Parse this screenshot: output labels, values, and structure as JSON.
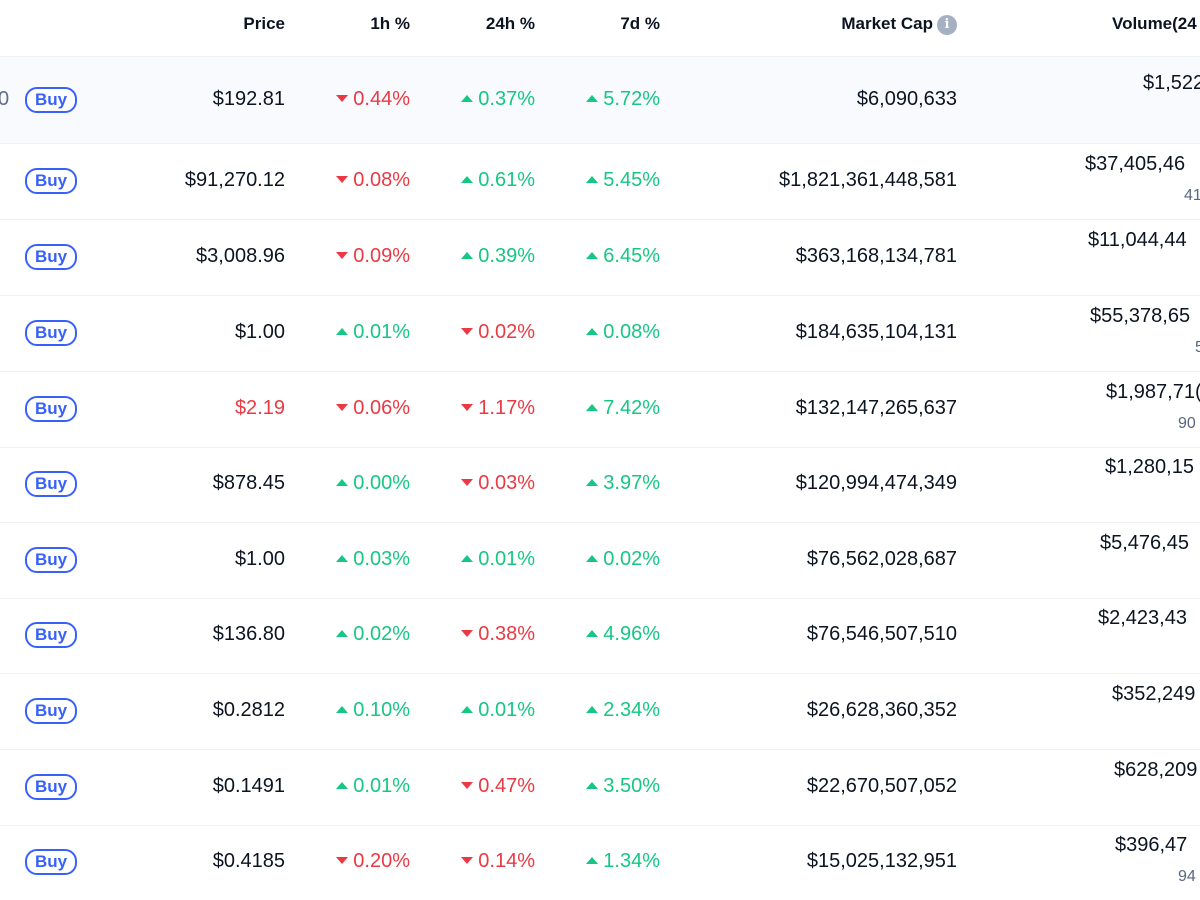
{
  "header": {
    "price": "Price",
    "h1": "1h %",
    "h24": "24h %",
    "d7": "7d %",
    "market_cap": "Market Cap",
    "info_glyph": "i",
    "volume": "Volume(24"
  },
  "buy_label": "Buy",
  "rows": [
    {
      "rank": "0",
      "price": "$192.81",
      "price_dir": "neutral",
      "h1": {
        "dir": "down",
        "value": "0.44%"
      },
      "h24": {
        "dir": "up",
        "value": "0.37%"
      },
      "d7": {
        "dir": "up",
        "value": "5.72%"
      },
      "market_cap": "$6,090,633",
      "volume": "$1,522",
      "volume_sub": ""
    },
    {
      "rank": "",
      "price": "$91,270.12",
      "price_dir": "neutral",
      "h1": {
        "dir": "down",
        "value": "0.08%"
      },
      "h24": {
        "dir": "up",
        "value": "0.61%"
      },
      "d7": {
        "dir": "up",
        "value": "5.45%"
      },
      "market_cap": "$1,821,361,448,581",
      "volume": "$37,405,46",
      "volume_sub": "41"
    },
    {
      "rank": "",
      "price": "$3,008.96",
      "price_dir": "neutral",
      "h1": {
        "dir": "down",
        "value": "0.09%"
      },
      "h24": {
        "dir": "up",
        "value": "0.39%"
      },
      "d7": {
        "dir": "up",
        "value": "6.45%"
      },
      "market_cap": "$363,168,134,781",
      "volume": "$11,044,44",
      "volume_sub": ""
    },
    {
      "rank": "",
      "price": "$1.00",
      "price_dir": "neutral",
      "h1": {
        "dir": "up",
        "value": "0.01%"
      },
      "h24": {
        "dir": "down",
        "value": "0.02%"
      },
      "d7": {
        "dir": "up",
        "value": "0.08%"
      },
      "market_cap": "$184,635,104,131",
      "volume": "$55,378,65",
      "volume_sub": "5"
    },
    {
      "rank": "",
      "price": "$2.19",
      "price_dir": "down",
      "h1": {
        "dir": "down",
        "value": "0.06%"
      },
      "h24": {
        "dir": "down",
        "value": "1.17%"
      },
      "d7": {
        "dir": "up",
        "value": "7.42%"
      },
      "market_cap": "$132,147,265,637",
      "volume": "$1,987,71(",
      "volume_sub": "90"
    },
    {
      "rank": "",
      "price": "$878.45",
      "price_dir": "neutral",
      "h1": {
        "dir": "up",
        "value": "0.00%"
      },
      "h24": {
        "dir": "down",
        "value": "0.03%"
      },
      "d7": {
        "dir": "up",
        "value": "3.97%"
      },
      "market_cap": "$120,994,474,349",
      "volume": "$1,280,15",
      "volume_sub": ""
    },
    {
      "rank": "",
      "price": "$1.00",
      "price_dir": "neutral",
      "h1": {
        "dir": "up",
        "value": "0.03%"
      },
      "h24": {
        "dir": "up",
        "value": "0.01%"
      },
      "d7": {
        "dir": "up",
        "value": "0.02%"
      },
      "market_cap": "$76,562,028,687",
      "volume": "$5,476,45",
      "volume_sub": ""
    },
    {
      "rank": "",
      "price": "$136.80",
      "price_dir": "neutral",
      "h1": {
        "dir": "up",
        "value": "0.02%"
      },
      "h24": {
        "dir": "down",
        "value": "0.38%"
      },
      "d7": {
        "dir": "up",
        "value": "4.96%"
      },
      "market_cap": "$76,546,507,510",
      "volume": "$2,423,43",
      "volume_sub": ""
    },
    {
      "rank": "",
      "price": "$0.2812",
      "price_dir": "neutral",
      "h1": {
        "dir": "up",
        "value": "0.10%"
      },
      "h24": {
        "dir": "up",
        "value": "0.01%"
      },
      "d7": {
        "dir": "up",
        "value": "2.34%"
      },
      "market_cap": "$26,628,360,352",
      "volume": "$352,249",
      "volume_sub": ""
    },
    {
      "rank": "",
      "price": "$0.1491",
      "price_dir": "neutral",
      "h1": {
        "dir": "up",
        "value": "0.01%"
      },
      "h24": {
        "dir": "down",
        "value": "0.47%"
      },
      "d7": {
        "dir": "up",
        "value": "3.50%"
      },
      "market_cap": "$22,670,507,052",
      "volume": "$628,209",
      "volume_sub": ""
    },
    {
      "rank": "",
      "price": "$0.4185",
      "price_dir": "neutral",
      "h1": {
        "dir": "down",
        "value": "0.20%"
      },
      "h24": {
        "dir": "down",
        "value": "0.14%"
      },
      "d7": {
        "dir": "up",
        "value": "1.34%"
      },
      "market_cap": "$15,025,132,951",
      "volume": "$396,47",
      "volume_sub": "94"
    }
  ],
  "colors": {
    "up": "#16c784",
    "down": "#ea3943",
    "accent": "#3861fb",
    "row_highlight": "#f8fafd"
  },
  "icons": {
    "info": "info-icon",
    "up": "caret-up-icon",
    "down": "caret-down-icon"
  }
}
